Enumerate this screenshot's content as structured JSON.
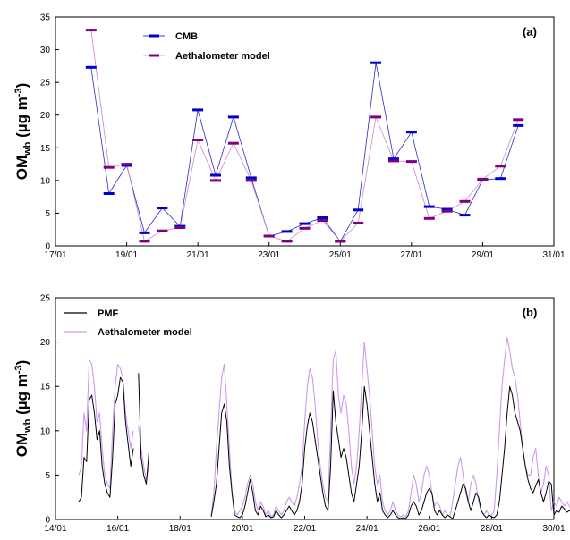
{
  "chart_data": [
    {
      "panel_label": "(a)",
      "type": "line",
      "xaxis": {
        "type": "date",
        "min": "2000-01-17",
        "max": "2000-01-31",
        "ticks": [
          "17/01",
          "19/01",
          "21/01",
          "23/01",
          "25/01",
          "27/01",
          "29/01",
          "31/01"
        ]
      },
      "ylabel": {
        "main": "OM",
        "sub": "wb",
        "unit_pre": " (µg m",
        "unit_sup": "-3",
        "unit_post": ")"
      },
      "ylim": [
        0,
        35
      ],
      "yticks": [
        0,
        5,
        10,
        15,
        20,
        25,
        30,
        35
      ],
      "legend_position": "top-left",
      "series": [
        {
          "name": "CMB",
          "color": "#0000cc",
          "marker": "dash",
          "x": [
            "2000-01-18T00:00",
            "2000-01-18T12:00",
            "2000-01-19T00:00",
            "2000-01-19T12:00",
            "2000-01-20T00:00",
            "2000-01-20T12:00",
            "2000-01-21T00:00",
            "2000-01-21T12:00",
            "2000-01-22T00:00",
            "2000-01-22T12:00",
            "2000-01-23T00:00",
            "2000-01-23T12:00",
            "2000-01-24T00:00",
            "2000-01-24T12:00",
            "2000-01-25T00:00",
            "2000-01-25T12:00",
            "2000-01-26T00:00",
            "2000-01-26T12:00",
            "2000-01-27T00:00",
            "2000-01-27T12:00",
            "2000-01-28T00:00",
            "2000-01-28T12:00",
            "2000-01-29T00:00",
            "2000-01-29T12:00",
            "2000-01-30T00:00"
          ],
          "y": [
            27.3,
            8.0,
            12.3,
            2.0,
            5.8,
            3.0,
            20.8,
            10.8,
            19.7,
            10.4,
            1.5,
            2.2,
            3.4,
            4.3,
            0.7,
            5.5,
            28.0,
            13.3,
            17.4,
            6.0,
            5.6,
            4.7,
            10.1,
            10.3,
            18.4
          ]
        },
        {
          "name": "Aethalometer model",
          "color": "#800080",
          "marker": "dash",
          "x": [
            "2000-01-18T00:00",
            "2000-01-18T12:00",
            "2000-01-19T00:00",
            "2000-01-19T12:00",
            "2000-01-20T00:00",
            "2000-01-20T12:00",
            "2000-01-21T00:00",
            "2000-01-21T12:00",
            "2000-01-22T00:00",
            "2000-01-22T12:00",
            "2000-01-23T00:00",
            "2000-01-23T12:00",
            "2000-01-24T00:00",
            "2000-01-24T12:00",
            "2000-01-25T00:00",
            "2000-01-25T12:00",
            "2000-01-26T00:00",
            "2000-01-26T12:00",
            "2000-01-27T00:00",
            "2000-01-27T12:00",
            "2000-01-28T00:00",
            "2000-01-28T12:00",
            "2000-01-29T00:00",
            "2000-01-29T12:00",
            "2000-01-30T00:00"
          ],
          "y": [
            33.0,
            12.0,
            12.5,
            0.7,
            2.3,
            2.8,
            16.2,
            10.0,
            15.7,
            10.0,
            1.5,
            0.7,
            2.7,
            3.9,
            0.7,
            3.5,
            19.7,
            13.0,
            12.9,
            4.2,
            5.3,
            6.8,
            10.2,
            12.2,
            19.3
          ]
        }
      ]
    },
    {
      "panel_label": "(b)",
      "type": "line",
      "xaxis": {
        "type": "date",
        "min": "2000-01-14",
        "max": "2000-01-30",
        "ticks": [
          "14/01",
          "16/01",
          "18/01",
          "20/01",
          "22/01",
          "24/01",
          "26/01",
          "28/01",
          "30/01"
        ]
      },
      "ylabel": {
        "main": "OM",
        "sub": "wb",
        "unit_pre": " (µg m",
        "unit_sup": "-3",
        "unit_post": ")"
      },
      "ylim": [
        0,
        25
      ],
      "yticks": [
        0,
        5,
        10,
        15,
        20,
        25
      ],
      "legend_position": "top-left",
      "series": [
        {
          "name": "PMF",
          "color": "#000000",
          "x_start": "2000-01-14T18:00",
          "interval_hours": 2,
          "y": [
            2,
            2.5,
            7,
            6.5,
            13.5,
            14,
            12,
            9,
            10,
            6,
            4,
            3,
            2.5,
            7,
            13,
            14,
            16,
            15.5,
            11,
            8.5,
            6,
            8,
            null,
            16.5,
            7,
            5,
            4,
            7.5,
            null,
            null,
            null,
            null,
            null,
            null,
            null,
            null,
            null,
            null,
            null,
            null,
            null,
            null,
            null,
            null,
            null,
            null,
            null,
            null,
            null,
            null,
            null,
            0.3,
            2,
            4,
            8,
            12,
            13,
            11,
            6,
            3,
            0.5,
            0.3,
            0.2,
            0.5,
            1.5,
            3,
            4.5,
            3,
            1,
            0.5,
            1.5,
            1,
            0.3,
            0.5,
            0.2,
            0.3,
            1,
            0.5,
            0.2,
            0.5,
            1,
            1.5,
            1,
            0.5,
            1,
            2,
            4,
            8,
            10.5,
            12,
            11,
            9,
            7,
            5,
            3,
            1.5,
            1,
            6,
            14.5,
            11,
            9,
            7,
            8,
            7,
            5,
            3,
            2,
            4,
            6,
            10,
            15,
            13,
            10,
            7,
            4,
            2,
            3,
            1,
            0.5,
            0.2,
            0.5,
            1,
            0.5,
            0.2,
            0.1,
            0.2,
            0.1,
            0.5,
            1.5,
            2,
            1.5,
            0.5,
            1,
            2,
            3,
            3.5,
            3,
            1,
            0.5,
            1,
            0.5,
            0.2,
            0.5,
            0.3,
            0.1,
            1,
            2,
            3,
            4,
            3.5,
            2,
            1,
            2,
            3,
            2.5,
            1,
            0.5,
            0.2,
            0.5,
            0.3,
            0.2,
            0.5,
            2,
            5,
            8,
            12,
            15,
            14,
            12,
            11,
            10,
            8,
            6,
            4.5,
            3.5,
            3,
            3.8,
            4.5,
            3,
            2,
            3,
            4.3,
            4,
            0.5,
            1,
            0.8,
            1.5,
            1.2,
            0.8,
            1,
            0.8,
            0.5,
            1,
            1.2,
            0.8,
            1.5,
            1.7,
            1.2,
            0.8,
            1.5,
            1.7,
            1.3,
            1,
            1.5,
            2.2,
            1.8,
            1.2,
            2,
            3,
            4,
            3,
            4.5,
            3,
            3.5,
            4,
            2,
            0.8,
            0.2,
            0.5,
            2,
            4,
            11,
            7.8
          ]
        },
        {
          "name": "Aethalometer model",
          "color": "#cc99ee",
          "x_start": "2000-01-14T18:00",
          "interval_hours": 2,
          "y": [
            5,
            6,
            12,
            10,
            18,
            17.5,
            15,
            11,
            12,
            8,
            5,
            4,
            3.5,
            10,
            15,
            17.5,
            17,
            16,
            12,
            10,
            8,
            10,
            null,
            10.5,
            8,
            6,
            4.5,
            6,
            null,
            null,
            null,
            null,
            null,
            null,
            null,
            null,
            null,
            null,
            null,
            null,
            null,
            null,
            null,
            null,
            null,
            null,
            null,
            null,
            null,
            null,
            null,
            0.5,
            3,
            8,
            12,
            16,
            17.5,
            13,
            8,
            3,
            1,
            0.5,
            1,
            1.5,
            2.5,
            4,
            5,
            4,
            2,
            1,
            2,
            1.5,
            0.5,
            1,
            0.3,
            0.5,
            1.5,
            1,
            0.5,
            1,
            2,
            2.5,
            2,
            1.5,
            2.5,
            4,
            6,
            11,
            15,
            17,
            16,
            13,
            9,
            6,
            4,
            2.5,
            2,
            10,
            18,
            19,
            14,
            12,
            14,
            13,
            10,
            6,
            4,
            6,
            10,
            15,
            20,
            17,
            14,
            10,
            6,
            4,
            5,
            2,
            1,
            0.5,
            1,
            2,
            1,
            0.5,
            0.3,
            0.5,
            0.3,
            1,
            3,
            5,
            4,
            2,
            3,
            5,
            6,
            5,
            3,
            1.5,
            2,
            1.5,
            0.5,
            1,
            0.5,
            0.3,
            2,
            4,
            6,
            7,
            5,
            3,
            2,
            4,
            5,
            4,
            2,
            1,
            0.5,
            1,
            0.5,
            0.5,
            1,
            5,
            10,
            15,
            18,
            20.5,
            19,
            17,
            16,
            14,
            11,
            8,
            6,
            5,
            5,
            7,
            8,
            5,
            3,
            4,
            6,
            5,
            1,
            2,
            1.5,
            2.5,
            2,
            1.5,
            2,
            1.5,
            1,
            2,
            2.5,
            2,
            3,
            3.5,
            2.5,
            1.5,
            3,
            3.5,
            2.5,
            2,
            3,
            4.5,
            3.5,
            2.5,
            4,
            6,
            9,
            7,
            12,
            8,
            10,
            11,
            8,
            4,
            2,
            3,
            8,
            13,
            18.5,
            16.5
          ]
        }
      ]
    }
  ]
}
